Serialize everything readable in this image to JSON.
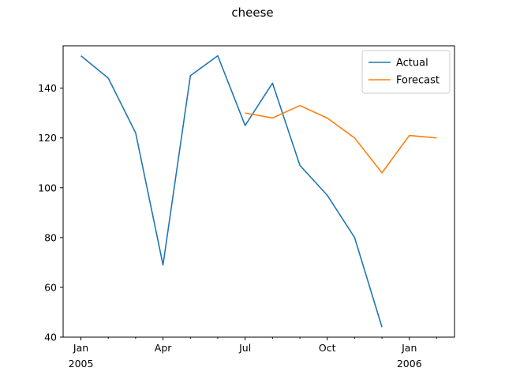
{
  "chart_data": {
    "type": "line",
    "title": "cheese",
    "xlabel": "",
    "ylabel": "",
    "x": [
      "2005-01",
      "2005-02",
      "2005-03",
      "2005-04",
      "2005-05",
      "2005-06",
      "2005-07",
      "2005-08",
      "2005-09",
      "2005-10",
      "2005-11",
      "2005-12",
      "2006-01",
      "2006-02"
    ],
    "x_ticks": [
      {
        "x": "2005-01",
        "label": "Jan",
        "sublabel": "2005"
      },
      {
        "x": "2005-04",
        "label": "Apr",
        "sublabel": ""
      },
      {
        "x": "2005-07",
        "label": "Jul",
        "sublabel": ""
      },
      {
        "x": "2005-10",
        "label": "Oct",
        "sublabel": ""
      },
      {
        "x": "2006-01",
        "label": "Jan",
        "sublabel": "2006"
      }
    ],
    "x_minor_ticks": [
      "2005-02",
      "2005-03",
      "2005-05",
      "2005-06",
      "2005-08",
      "2005-09",
      "2005-11",
      "2005-12",
      "2006-02"
    ],
    "xlim": [
      "2005-01",
      "2006-02"
    ],
    "ylim": [
      40,
      157
    ],
    "y_ticks": [
      40,
      60,
      80,
      100,
      120,
      140
    ],
    "grid": false,
    "legend_position": "top-right",
    "series": [
      {
        "name": "Actual",
        "color": "#1f77b4",
        "points": [
          {
            "x": "2005-01",
            "y": 153
          },
          {
            "x": "2005-02",
            "y": 144
          },
          {
            "x": "2005-03",
            "y": 122
          },
          {
            "x": "2005-04",
            "y": 69
          },
          {
            "x": "2005-05",
            "y": 145
          },
          {
            "x": "2005-06",
            "y": 153
          },
          {
            "x": "2005-07",
            "y": 125
          },
          {
            "x": "2005-08",
            "y": 142
          },
          {
            "x": "2005-09",
            "y": 109
          },
          {
            "x": "2005-10",
            "y": 97
          },
          {
            "x": "2005-11",
            "y": 80
          },
          {
            "x": "2005-12",
            "y": 44
          }
        ]
      },
      {
        "name": "Forecast",
        "color": "#ff7f0e",
        "points": [
          {
            "x": "2005-07",
            "y": 130
          },
          {
            "x": "2005-08",
            "y": 128
          },
          {
            "x": "2005-09",
            "y": 133
          },
          {
            "x": "2005-10",
            "y": 128
          },
          {
            "x": "2005-11",
            "y": 120
          },
          {
            "x": "2005-12",
            "y": 106
          },
          {
            "x": "2006-01",
            "y": 121
          },
          {
            "x": "2006-02",
            "y": 120
          }
        ]
      }
    ]
  }
}
